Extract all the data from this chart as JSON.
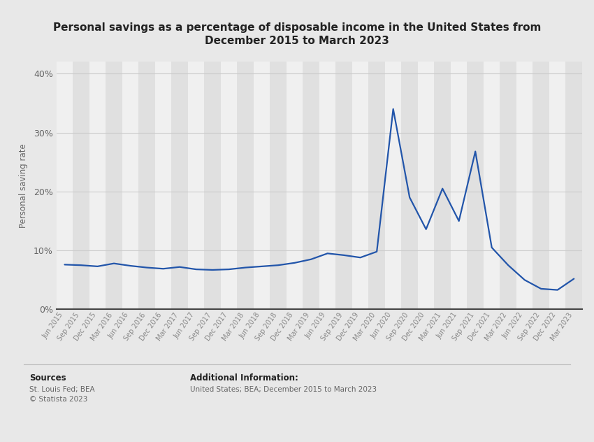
{
  "title": "Personal savings as a percentage of disposable income in the United States from\nDecember 2015 to March 2023",
  "ylabel": "Personal saving rate",
  "background_color": "#e8e8e8",
  "plot_bg_color": "#e8e8e8",
  "line_color": "#2255aa",
  "line_width": 1.6,
  "x_labels": [
    "Jun 2015",
    "Sep 2015",
    "Dec 2015",
    "Mar 2016",
    "Jun 2016",
    "Sep 2016",
    "Dec 2016",
    "Mar 2017",
    "Jun 2017",
    "Sep 2017",
    "Dec 2017",
    "Mar 2018",
    "Jun 2018",
    "Sep 2018",
    "Dec 2018",
    "Mar 2019",
    "Jun 2019",
    "Sep 2019",
    "Dec 2019",
    "Mar 2020",
    "Jun 2020",
    "Sep 2020",
    "Dec 2020",
    "Mar 2021",
    "Jun 2021",
    "Sep 2021",
    "Dec 2021",
    "Mar 2022",
    "Jun 2022",
    "Sep 2022",
    "Dec 2022",
    "Mar 2023"
  ],
  "values": [
    7.6,
    7.5,
    7.3,
    7.8,
    7.4,
    7.1,
    6.9,
    7.2,
    6.8,
    6.7,
    6.8,
    7.1,
    7.3,
    7.5,
    7.9,
    8.5,
    9.5,
    9.2,
    8.8,
    9.8,
    34.0,
    19.0,
    13.6,
    20.5,
    15.0,
    26.8,
    10.5,
    7.5,
    5.0,
    3.5,
    3.3,
    5.2
  ],
  "yticks": [
    0,
    10,
    20,
    30,
    40
  ],
  "ytick_labels": [
    "0%",
    "10%",
    "20%",
    "30%",
    "40%"
  ],
  "ylim": [
    0,
    42
  ],
  "stripe_color_light": "#f0f0f0",
  "stripe_color_dark": "#e0e0e0",
  "grid_color": "#cccccc",
  "sources_label": "Sources",
  "sources_body": "St. Louis Fed; BEA\n© Statista 2023",
  "add_info_label": "Additional Information:",
  "add_info_body": "United States; BEA; December 2015 to March 2023"
}
